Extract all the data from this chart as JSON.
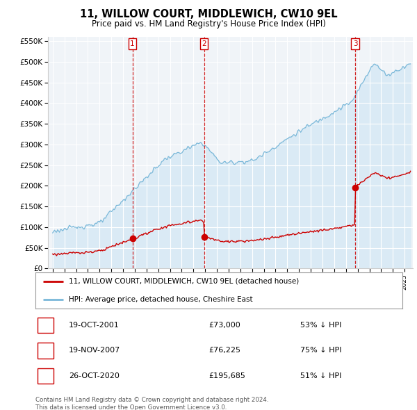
{
  "title": "11, WILLOW COURT, MIDDLEWICH, CW10 9EL",
  "subtitle": "Price paid vs. HM Land Registry's House Price Index (HPI)",
  "hpi_label": "HPI: Average price, detached house, Cheshire East",
  "property_label": "11, WILLOW COURT, MIDDLEWICH, CW10 9EL (detached house)",
  "transactions": [
    {
      "num": 1,
      "date": "19-OCT-2001",
      "price": 73000,
      "pct": "53% ↓ HPI",
      "x_year": 2001.8
    },
    {
      "num": 2,
      "date": "19-NOV-2007",
      "price": 76225,
      "pct": "75% ↓ HPI",
      "x_year": 2007.9
    },
    {
      "num": 3,
      "date": "26-OCT-2020",
      "price": 195685,
      "pct": "51% ↓ HPI",
      "x_year": 2020.8
    }
  ],
  "footer_line1": "Contains HM Land Registry data © Crown copyright and database right 2024.",
  "footer_line2": "This data is licensed under the Open Government Licence v3.0.",
  "hpi_color": "#7ab8d9",
  "hpi_fill_color": "#daeaf5",
  "property_color": "#cc0000",
  "vline_color": "#cc0000",
  "background_color": "#ffffff",
  "plot_bg_color": "#f0f4f8",
  "ylim": [
    0,
    560000
  ],
  "xlim_start": 1994.6,
  "xlim_end": 2025.7
}
